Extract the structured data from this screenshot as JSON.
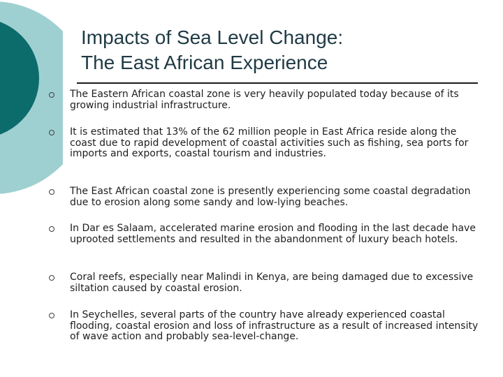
{
  "slide": {
    "title_line1": "Impacts of Sea Level Change:",
    "title_line2": "The  East African Experience",
    "colors": {
      "accent_dark": "#0c6b6b",
      "accent_light": "#9fd0d1",
      "title": "#1f3a44",
      "text": "#1e1e1e"
    },
    "bullets": [
      "The Eastern African coastal zone is very heavily populated today because of its growing industrial infrastructure.",
      "It is estimated that 13% of the 62 million people in East Africa reside along the coast due to rapid development of coastal activities such as fishing, sea ports for imports and exports, coastal tourism and industries.",
      "The East African coastal zone is presently experiencing some coastal degradation due to erosion along some sandy and low-lying beaches.",
      "In Dar es Salaam, accelerated marine erosion and flooding in the last decade have uprooted settlements and resulted in the abandonment of luxury beach hotels.",
      "Coral reefs, especially near Malindi in Kenya, are being damaged due to excessive siltation caused by coastal erosion.",
      "In Seychelles, several parts of the country have already experienced coastal flooding, coastal erosion and loss of infrastructure as a result of increased intensity of wave action and probably sea-level-change."
    ]
  }
}
